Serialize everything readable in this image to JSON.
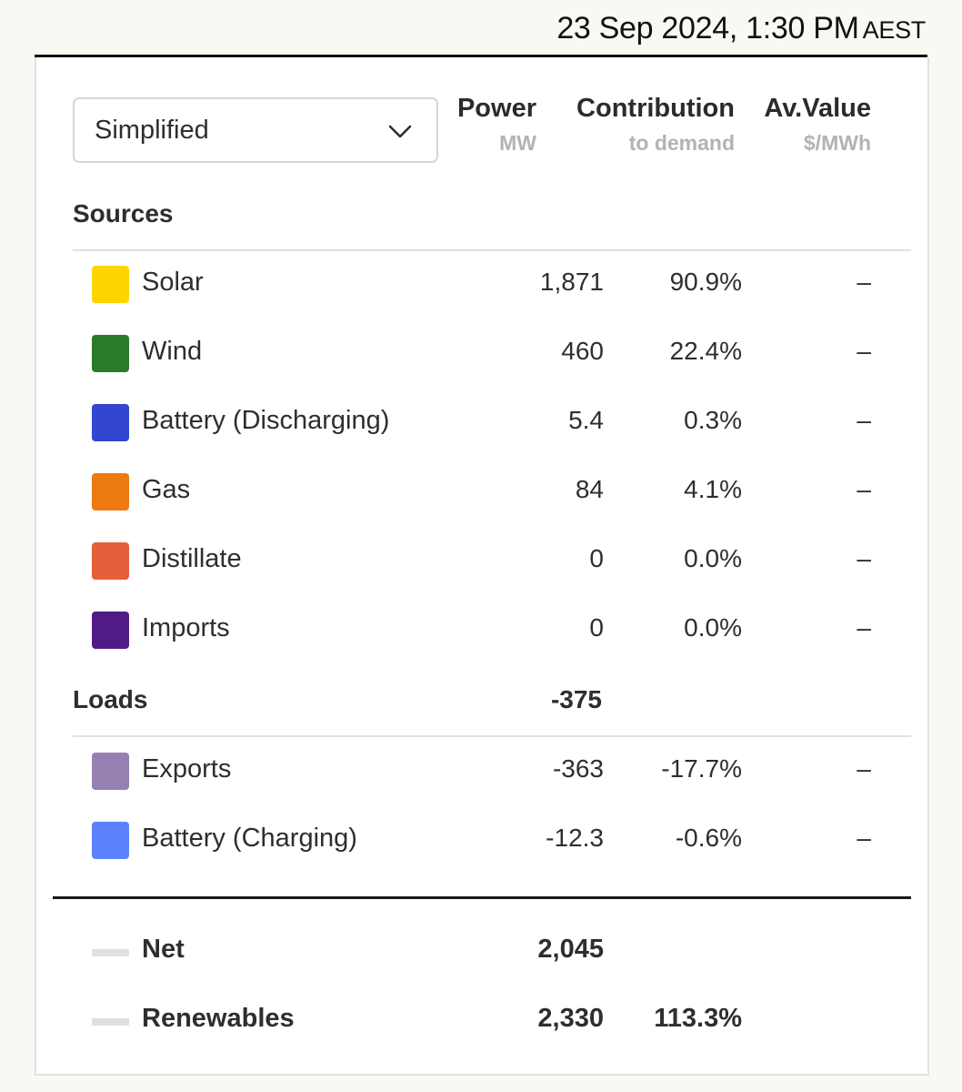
{
  "header": {
    "datetime": "23 Sep 2024, 1:30 PM",
    "timezone": "AEST"
  },
  "view_select": {
    "value": "Simplified"
  },
  "columns": {
    "power": {
      "label": "Power",
      "unit": "MW"
    },
    "contribution": {
      "label": "Contribution",
      "unit": "to demand"
    },
    "av_value": {
      "label": "Av.Value",
      "unit": "$/MWh"
    }
  },
  "sources": {
    "label": "Sources",
    "rows": [
      {
        "name": "Solar",
        "power": "1,871",
        "contribution": "90.9%",
        "av_value": "–",
        "color": "#ffd500",
        "icon": "solar-swatch"
      },
      {
        "name": "Wind",
        "power": "460",
        "contribution": "22.4%",
        "av_value": "–",
        "color": "#2a7a2a",
        "icon": "wind-swatch"
      },
      {
        "name": "Battery (Discharging)",
        "power": "5.4",
        "contribution": "0.3%",
        "av_value": "–",
        "color": "#3246d0",
        "icon": "battery-discharging-swatch"
      },
      {
        "name": "Gas",
        "power": "84",
        "contribution": "4.1%",
        "av_value": "–",
        "color": "#ec7a10",
        "icon": "gas-swatch"
      },
      {
        "name": "Distillate",
        "power": "0",
        "contribution": "0.0%",
        "av_value": "–",
        "color": "#e5603a",
        "icon": "distillate-swatch"
      },
      {
        "name": "Imports",
        "power": "0",
        "contribution": "0.0%",
        "av_value": "–",
        "color": "#521a86",
        "icon": "imports-swatch"
      }
    ]
  },
  "loads": {
    "label": "Loads",
    "total": "-375",
    "rows": [
      {
        "name": "Exports",
        "power": "-363",
        "contribution": "-17.7%",
        "av_value": "–",
        "color": "#9580b1",
        "icon": "exports-swatch"
      },
      {
        "name": "Battery (Charging)",
        "power": "-12.3",
        "contribution": "-0.6%",
        "av_value": "–",
        "color": "#5a82fc",
        "icon": "battery-charging-swatch"
      }
    ]
  },
  "summary": {
    "net": {
      "name": "Net",
      "power": "2,045",
      "contribution": ""
    },
    "renewables": {
      "name": "Renewables",
      "power": "2,330",
      "contribution": "113.3%"
    }
  }
}
